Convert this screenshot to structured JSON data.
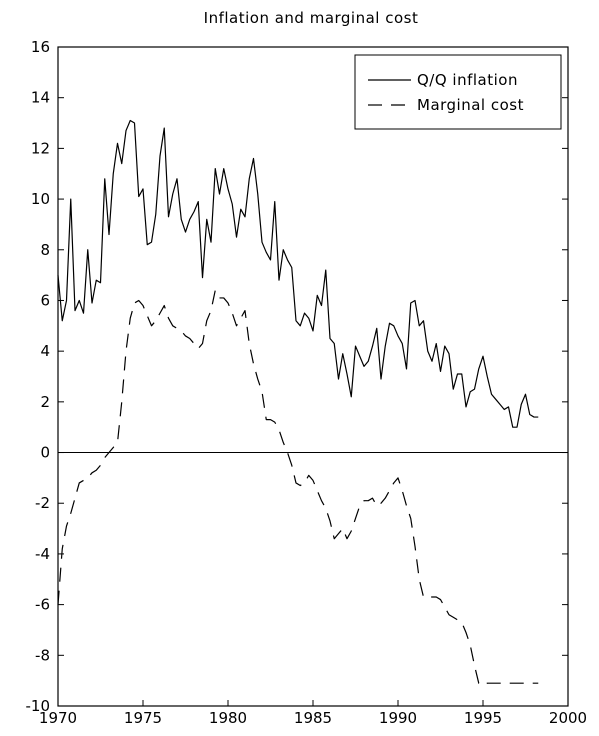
{
  "chart_data": {
    "type": "line",
    "title": "Inflation and marginal cost",
    "xlabel": "",
    "ylabel": "",
    "xlim": [
      1970,
      2000
    ],
    "ylim": [
      -10,
      16
    ],
    "x_ticks": [
      1970,
      1975,
      1980,
      1985,
      1990,
      1995,
      2000
    ],
    "y_ticks": [
      -10,
      -8,
      -6,
      -4,
      -2,
      0,
      2,
      4,
      6,
      8,
      10,
      12,
      14,
      16
    ],
    "zero_line": true,
    "grid": false,
    "legend_position": "top-right",
    "series": [
      {
        "name": "Q/Q inflation",
        "style": "solid",
        "x": [
          1970.0,
          1970.25,
          1970.5,
          1970.75,
          1971.0,
          1971.25,
          1971.5,
          1971.75,
          1972.0,
          1972.25,
          1972.5,
          1972.75,
          1973.0,
          1973.25,
          1973.5,
          1973.75,
          1974.0,
          1974.25,
          1974.5,
          1974.75,
          1975.0,
          1975.25,
          1975.5,
          1975.75,
          1976.0,
          1976.25,
          1976.5,
          1976.75,
          1977.0,
          1977.25,
          1977.5,
          1977.75,
          1978.0,
          1978.25,
          1978.5,
          1978.75,
          1979.0,
          1979.25,
          1979.5,
          1979.75,
          1980.0,
          1980.25,
          1980.5,
          1980.75,
          1981.0,
          1981.25,
          1981.5,
          1981.75,
          1982.0,
          1982.25,
          1982.5,
          1982.75,
          1983.0,
          1983.25,
          1983.5,
          1983.75,
          1984.0,
          1984.25,
          1984.5,
          1984.75,
          1985.0,
          1985.25,
          1985.5,
          1985.75,
          1986.0,
          1986.25,
          1986.5,
          1986.75,
          1987.0,
          1987.25,
          1987.5,
          1987.75,
          1988.0,
          1988.25,
          1988.5,
          1988.75,
          1989.0,
          1989.25,
          1989.5,
          1989.75,
          1990.0,
          1990.25,
          1990.5,
          1990.75,
          1991.0,
          1991.25,
          1991.5,
          1991.75,
          1992.0,
          1992.25,
          1992.5,
          1992.75,
          1993.0,
          1993.25,
          1993.5,
          1993.75,
          1994.0,
          1994.25,
          1994.5,
          1994.75,
          1995.0,
          1995.25,
          1995.5,
          1995.75,
          1996.0,
          1996.25,
          1996.5,
          1996.75,
          1997.0,
          1997.25,
          1997.5,
          1997.75,
          1998.0,
          1998.25
        ],
        "y": [
          7.0,
          5.2,
          6.0,
          10.0,
          5.6,
          6.0,
          5.5,
          8.0,
          5.9,
          6.8,
          6.7,
          10.8,
          8.6,
          11.0,
          12.2,
          11.4,
          12.7,
          13.1,
          13.0,
          10.1,
          10.4,
          8.2,
          8.3,
          9.4,
          11.7,
          12.8,
          9.3,
          10.2,
          10.8,
          9.2,
          8.7,
          9.2,
          9.5,
          9.9,
          6.9,
          9.2,
          8.3,
          11.2,
          10.2,
          11.2,
          10.4,
          9.8,
          8.5,
          9.6,
          9.3,
          10.8,
          11.6,
          10.2,
          8.3,
          7.9,
          7.6,
          9.9,
          6.8,
          8.0,
          7.6,
          7.3,
          5.2,
          5.0,
          5.5,
          5.3,
          4.8,
          6.2,
          5.8,
          7.2,
          4.5,
          4.3,
          2.9,
          3.9,
          3.1,
          2.2,
          4.2,
          3.8,
          3.4,
          3.6,
          4.2,
          4.9,
          2.9,
          4.2,
          5.1,
          5.0,
          4.6,
          4.3,
          3.3,
          5.9,
          6.0,
          5.0,
          5.2,
          4.0,
          3.6,
          4.3,
          3.2,
          4.2,
          3.9,
          2.5,
          3.1,
          3.1,
          1.8,
          2.4,
          2.5,
          3.3,
          3.8,
          3.0,
          2.3,
          2.1,
          1.9,
          1.7,
          1.8,
          1.0,
          1.0,
          1.9,
          2.3,
          1.5,
          1.4,
          1.4
        ]
      },
      {
        "name": "Marginal cost",
        "style": "dashed",
        "x": [
          1970.0,
          1970.25,
          1970.5,
          1970.75,
          1971.0,
          1971.25,
          1971.5,
          1971.75,
          1972.0,
          1972.25,
          1972.5,
          1972.75,
          1973.0,
          1973.25,
          1973.5,
          1973.75,
          1974.0,
          1974.25,
          1974.5,
          1974.75,
          1975.0,
          1975.25,
          1975.5,
          1975.75,
          1976.0,
          1976.25,
          1976.5,
          1976.75,
          1977.0,
          1977.25,
          1977.5,
          1977.75,
          1978.0,
          1978.25,
          1978.5,
          1978.75,
          1979.0,
          1979.25,
          1979.5,
          1979.75,
          1980.0,
          1980.25,
          1980.5,
          1980.75,
          1981.0,
          1981.25,
          1981.5,
          1981.75,
          1982.0,
          1982.25,
          1982.5,
          1982.75,
          1983.0,
          1983.25,
          1983.5,
          1983.75,
          1984.0,
          1984.25,
          1984.5,
          1984.75,
          1985.0,
          1985.25,
          1985.5,
          1985.75,
          1986.0,
          1986.25,
          1986.5,
          1986.75,
          1987.0,
          1987.25,
          1987.5,
          1987.75,
          1988.0,
          1988.25,
          1988.5,
          1988.75,
          1989.0,
          1989.25,
          1989.5,
          1989.75,
          1990.0,
          1990.25,
          1990.5,
          1990.75,
          1991.0,
          1991.25,
          1991.5,
          1991.75,
          1992.0,
          1992.25,
          1992.5,
          1992.75,
          1993.0,
          1993.25,
          1993.5,
          1993.75,
          1994.0,
          1994.25,
          1994.5,
          1994.75,
          1995.0,
          1995.25,
          1995.5,
          1995.75,
          1996.0,
          1996.25,
          1996.5,
          1996.75,
          1997.0,
          1997.25,
          1997.5,
          1997.75,
          1998.0,
          1998.25
        ],
        "y": [
          -6.0,
          -3.8,
          -2.9,
          -2.4,
          -1.8,
          -1.2,
          -1.1,
          -1.0,
          -0.8,
          -0.7,
          -0.5,
          -0.2,
          0.0,
          0.2,
          0.4,
          2.0,
          4.0,
          5.3,
          5.9,
          6.0,
          5.8,
          5.4,
          5.0,
          5.2,
          5.5,
          5.8,
          5.3,
          5.0,
          4.9,
          4.8,
          4.6,
          4.5,
          4.3,
          4.1,
          4.3,
          5.2,
          5.6,
          6.4,
          6.1,
          6.1,
          5.9,
          5.5,
          5.0,
          5.3,
          5.6,
          4.3,
          3.5,
          2.9,
          2.4,
          1.3,
          1.3,
          1.2,
          0.9,
          0.4,
          0.0,
          -0.5,
          -1.2,
          -1.3,
          -1.2,
          -0.9,
          -1.1,
          -1.5,
          -1.9,
          -2.2,
          -2.7,
          -3.4,
          -3.2,
          -3.0,
          -3.4,
          -3.1,
          -2.6,
          -2.1,
          -1.9,
          -1.9,
          -1.8,
          -2.1,
          -2.0,
          -1.8,
          -1.5,
          -1.2,
          -1.0,
          -1.5,
          -2.1,
          -2.6,
          -3.7,
          -5.0,
          -5.7,
          -5.7,
          -5.7,
          -5.7,
          -5.8,
          -6.1,
          -6.4,
          -6.5,
          -6.6,
          -6.7,
          -7.1,
          -7.6,
          -8.4,
          -9.1,
          -9.2,
          -9.1,
          -9.1,
          -9.1,
          -9.1,
          -9.1,
          -9.1,
          -9.1,
          -9.1,
          -9.1,
          -9.1,
          -9.1,
          -9.1,
          -9.1
        ]
      }
    ]
  }
}
